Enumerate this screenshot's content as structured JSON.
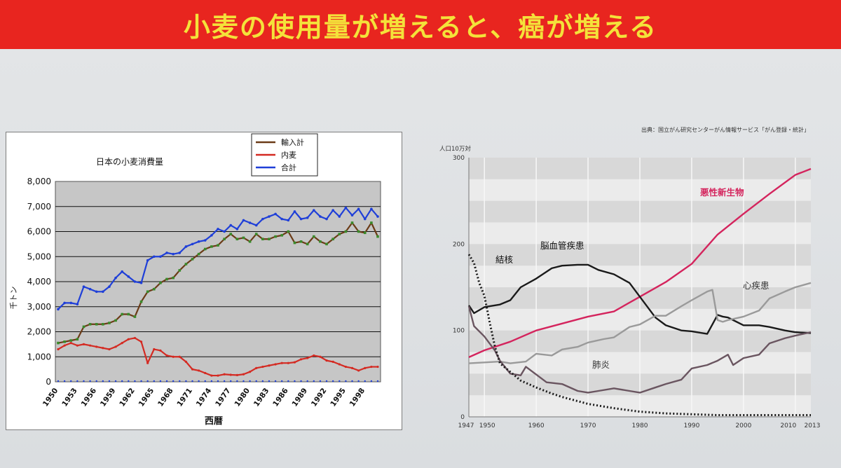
{
  "banner": {
    "title": "小麦の使用量が増えると、癌が増える"
  },
  "colors": {
    "banner": "#e8251f",
    "banner_text": "#f4e23a"
  },
  "chart_data": [
    {
      "type": "line",
      "title": "日本の小麦消費量",
      "xlabel": "西暦",
      "ylabel": "千トン",
      "ylim": [
        0,
        8000
      ],
      "yticks": [
        "0",
        "1,000",
        "2,000",
        "3,000",
        "4,000",
        "5,000",
        "6,000",
        "7,000",
        "8,000"
      ],
      "xticks": [
        "1950",
        "1953",
        "1956",
        "1959",
        "1962",
        "1965",
        "1968",
        "1971",
        "1974",
        "1977",
        "1980",
        "1983",
        "1986",
        "1989",
        "1992",
        "1995",
        "1998"
      ],
      "legend_position": "top-right",
      "grid": true,
      "x": [
        1950,
        1951,
        1952,
        1953,
        1954,
        1955,
        1956,
        1957,
        1958,
        1959,
        1960,
        1961,
        1962,
        1963,
        1964,
        1965,
        1966,
        1967,
        1968,
        1969,
        1970,
        1971,
        1972,
        1973,
        1974,
        1975,
        1976,
        1977,
        1978,
        1979,
        1980,
        1981,
        1982,
        1983,
        1984,
        1985,
        1986,
        1987,
        1988,
        1989,
        1990,
        1991,
        1992,
        1993,
        1994,
        1995,
        1996,
        1997,
        1998,
        1999,
        2000
      ],
      "series": [
        {
          "name": "輸入計",
          "color": "#6b3b17",
          "marker": "square",
          "values": [
            1550,
            1600,
            1650,
            1700,
            2200,
            2300,
            2300,
            2300,
            2350,
            2450,
            2700,
            2700,
            2600,
            3200,
            3600,
            3700,
            3950,
            4100,
            4150,
            4450,
            4700,
            4900,
            5100,
            5300,
            5400,
            5450,
            5700,
            5900,
            5700,
            5750,
            5600,
            5900,
            5700,
            5700,
            5800,
            5850,
            6000,
            5550,
            5600,
            5500,
            5800,
            5600,
            5500,
            5700,
            5900,
            6000,
            6350,
            6000,
            5950,
            6350,
            5800
          ]
        },
        {
          "name": "内麦",
          "color": "#d42a22",
          "marker": "dot",
          "values": [
            1300,
            1450,
            1550,
            1450,
            1500,
            1450,
            1400,
            1350,
            1300,
            1400,
            1550,
            1700,
            1750,
            1600,
            750,
            1300,
            1250,
            1050,
            1000,
            1000,
            800,
            500,
            450,
            350,
            250,
            250,
            300,
            280,
            270,
            300,
            400,
            550,
            600,
            650,
            700,
            750,
            750,
            780,
            900,
            950,
            1050,
            1000,
            850,
            800,
            700,
            600,
            550,
            450,
            550,
            600,
            600
          ]
        },
        {
          "name": "合計",
          "color": "#1f3fd8",
          "marker": "triangle",
          "values": [
            2900,
            3150,
            3150,
            3100,
            3800,
            3700,
            3600,
            3600,
            3800,
            4150,
            4400,
            4200,
            4000,
            3950,
            4850,
            5000,
            5000,
            5150,
            5100,
            5150,
            5400,
            5500,
            5600,
            5650,
            5850,
            6100,
            6000,
            6250,
            6100,
            6450,
            6350,
            6250,
            6500,
            6600,
            6700,
            6500,
            6450,
            6800,
            6500,
            6550,
            6850,
            6600,
            6500,
            6850,
            6600,
            6950,
            6650,
            6900,
            6500,
            6900,
            6600
          ]
        }
      ]
    },
    {
      "type": "line",
      "title": "",
      "source_note": "出典：国立がん研究センターがん情報サービス「がん登録・統計」",
      "ylabel": "人口10万対",
      "ylim": [
        0,
        300
      ],
      "yticks": [
        "0",
        "100",
        "200",
        "300"
      ],
      "xticks": [
        "1947",
        "1950",
        "1960",
        "1970",
        "1980",
        "1990",
        "2000",
        "2010",
        "2013"
      ],
      "grid": true,
      "series": [
        {
          "name": "悪性新生物",
          "color": "#d4245d",
          "x": [
            1947,
            1950,
            1955,
            1960,
            1965,
            1970,
            1975,
            1980,
            1985,
            1990,
            1995,
            2000,
            2005,
            2010,
            2013
          ],
          "values": [
            69,
            77,
            87,
            100,
            108,
            116,
            122,
            139,
            156,
            177,
            211,
            235,
            258,
            280,
            287
          ]
        },
        {
          "name": "脳血管疾患",
          "color": "#1a1a1a",
          "x": [
            1947,
            1948,
            1950,
            1953,
            1955,
            1957,
            1960,
            1963,
            1965,
            1968,
            1970,
            1972,
            1975,
            1978,
            1980,
            1983,
            1985,
            1988,
            1990,
            1993,
            1995,
            1996,
            1997,
            1998,
            2000,
            2003,
            2005,
            2008,
            2010,
            2013
          ],
          "values": [
            129,
            120,
            127,
            130,
            135,
            150,
            160,
            172,
            175,
            176,
            176,
            170,
            165,
            155,
            139,
            115,
            106,
            100,
            99,
            96,
            118,
            116,
            115,
            112,
            106,
            106,
            104,
            100,
            98,
            97
          ]
        },
        {
          "name": "心疾患",
          "color": "#9a9a9a",
          "x": [
            1947,
            1950,
            1953,
            1955,
            1958,
            1960,
            1963,
            1965,
            1968,
            1970,
            1973,
            1975,
            1978,
            1980,
            1983,
            1985,
            1988,
            1990,
            1993,
            1994,
            1995,
            1996,
            1997,
            2000,
            2003,
            2005,
            2008,
            2010,
            2013
          ],
          "values": [
            62,
            63,
            64,
            62,
            64,
            73,
            71,
            78,
            81,
            86,
            90,
            92,
            104,
            107,
            117,
            117,
            128,
            135,
            145,
            147,
            112,
            110,
            112,
            116,
            123,
            137,
            145,
            150,
            155
          ]
        },
        {
          "name": "肺炎",
          "color": "#6a5560",
          "x": [
            1947,
            1948,
            1950,
            1952,
            1953,
            1955,
            1957,
            1958,
            1960,
            1962,
            1965,
            1968,
            1970,
            1972,
            1975,
            1978,
            1980,
            1983,
            1985,
            1988,
            1990,
            1993,
            1995,
            1997,
            1998,
            2000,
            2003,
            2005,
            2008,
            2010,
            2013
          ],
          "values": [
            128,
            105,
            93,
            77,
            65,
            50,
            48,
            58,
            49,
            40,
            38,
            30,
            28,
            30,
            33,
            30,
            28,
            34,
            38,
            43,
            56,
            60,
            65,
            72,
            60,
            68,
            72,
            85,
            91,
            94,
            98
          ]
        },
        {
          "name": "結核",
          "color": "#1a1a1a",
          "style": "dotted",
          "x": [
            1947,
            1948,
            1949,
            1950,
            1951,
            1952,
            1953,
            1955,
            1957,
            1960,
            1963,
            1965,
            1970,
            1975,
            1980,
            1985,
            1990,
            1995,
            2000,
            2005,
            2010,
            2013
          ],
          "values": [
            188,
            178,
            155,
            140,
            110,
            82,
            62,
            52,
            42,
            34,
            27,
            23,
            15,
            10,
            6,
            4,
            3,
            2,
            2,
            2,
            2,
            2
          ]
        }
      ]
    }
  ]
}
